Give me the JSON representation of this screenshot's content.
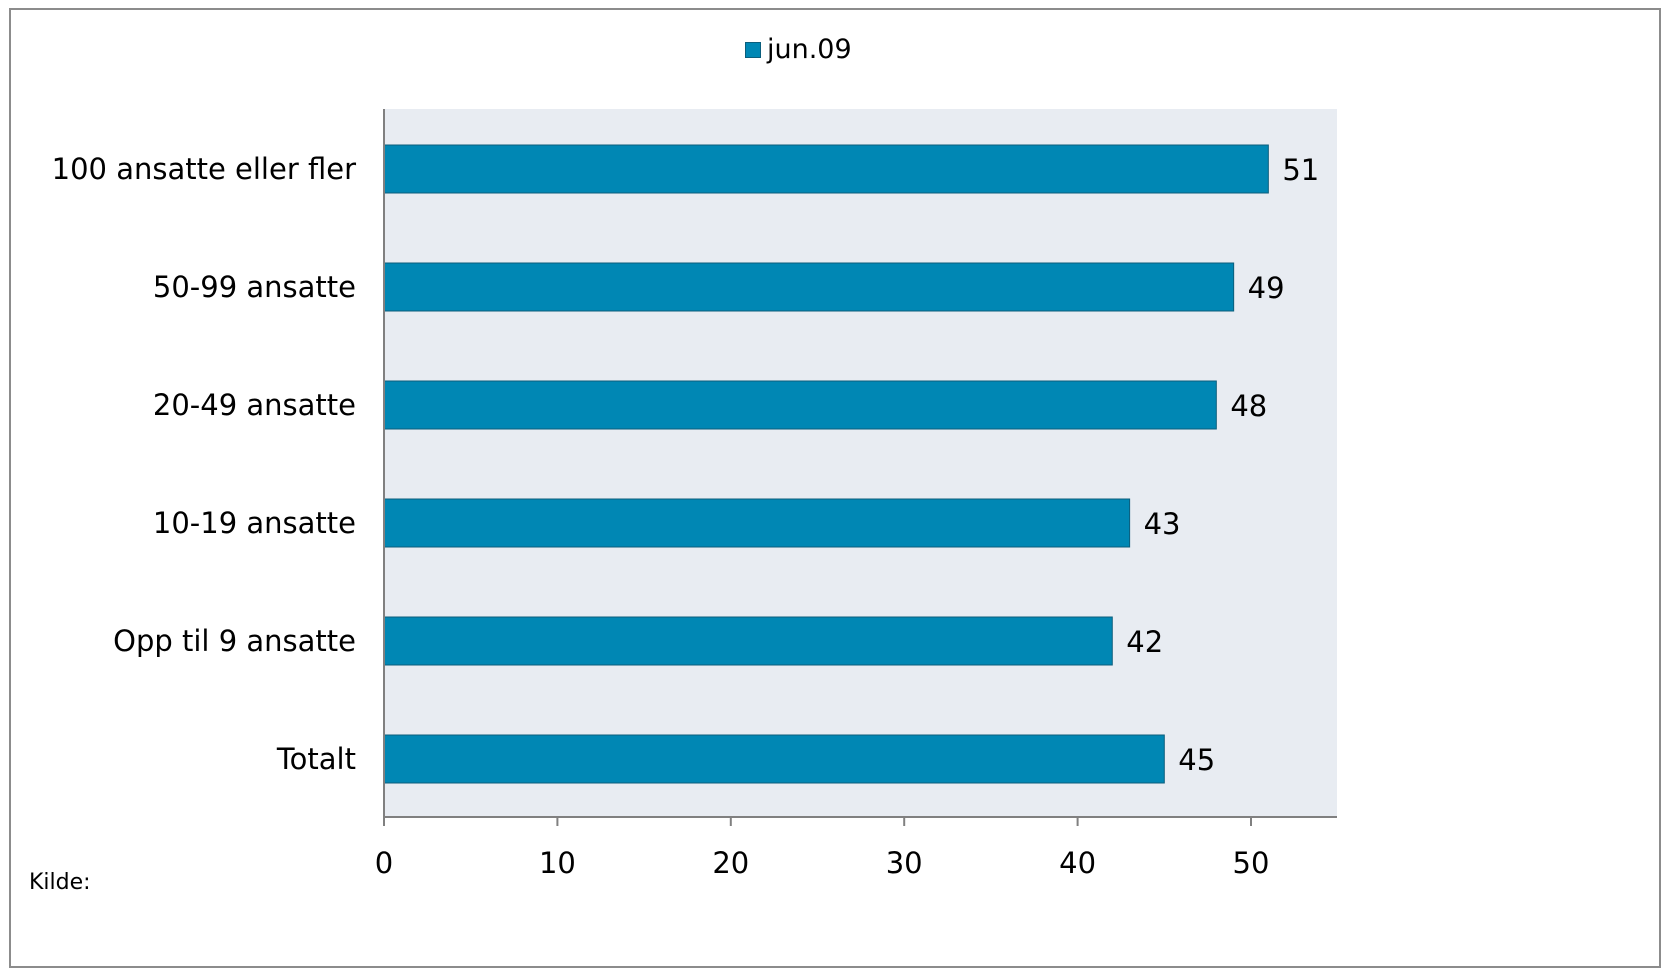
{
  "legend": {
    "label": "jun.09"
  },
  "source_label": "Kilde:",
  "colors": {
    "bar": "#0087b4",
    "bar_stroke": "#0b5e7c",
    "plot_bg": "#e8ecf2",
    "axis": "#808080"
  },
  "chart_data": {
    "type": "bar",
    "orientation": "horizontal",
    "categories": [
      "100 ansatte eller fler",
      "50-99 ansatte",
      "20-49 ansatte",
      "10-19 ansatte",
      "Opp til 9 ansatte",
      "Totalt"
    ],
    "series": [
      {
        "name": "jun.09",
        "values": [
          51,
          49,
          48,
          43,
          42,
          45
        ]
      }
    ],
    "value_labels": [
      "51",
      "49",
      "48",
      "43",
      "42",
      "45"
    ],
    "xlim": [
      0,
      55
    ],
    "xticks": [
      0,
      10,
      20,
      30,
      40,
      50
    ],
    "title": "",
    "xlabel": "",
    "ylabel": "",
    "legend_position": "top-center",
    "grid": false
  }
}
